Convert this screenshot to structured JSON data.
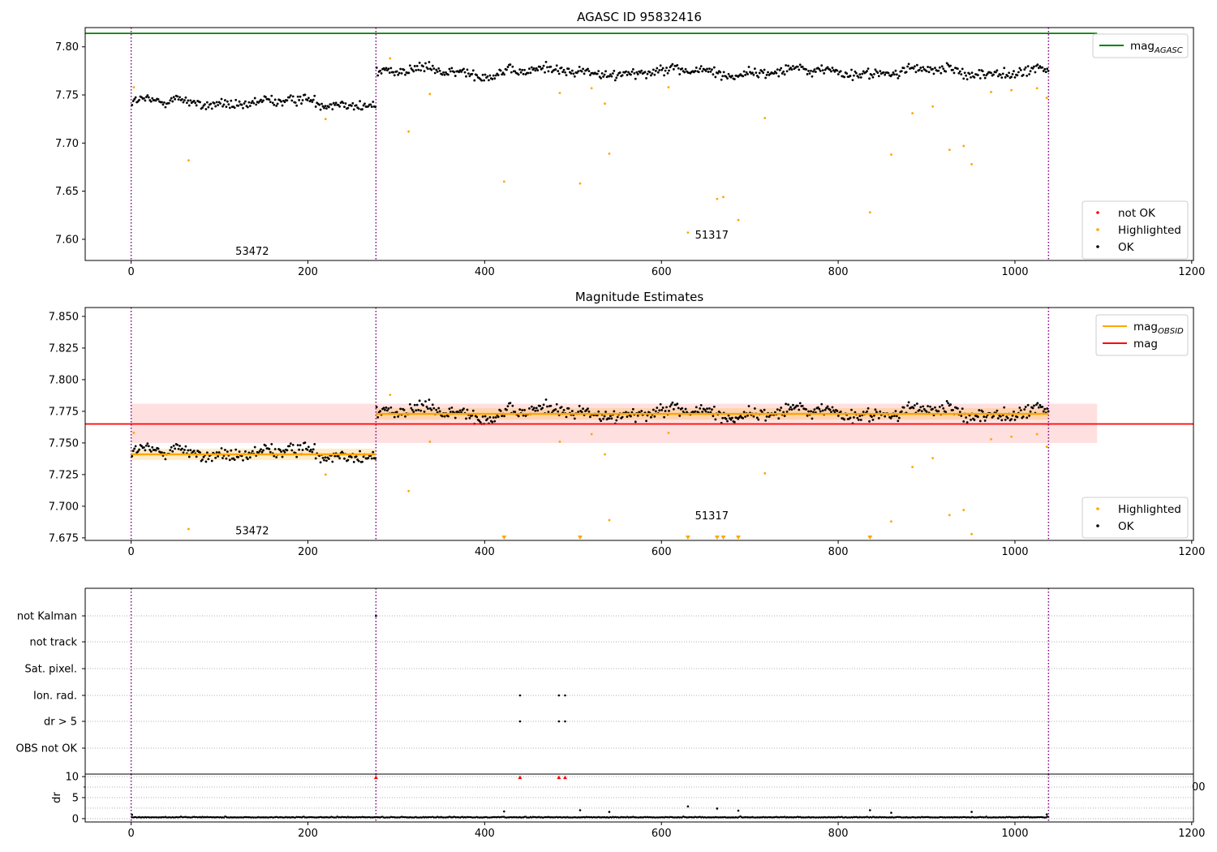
{
  "chart_data": [
    {
      "type": "scatter",
      "title": "AGASC ID 95832416",
      "xlim": [
        -52,
        1202
      ],
      "ylim": [
        7.578,
        7.82
      ],
      "x_ticks": [
        0,
        200,
        400,
        600,
        800,
        1000,
        1200
      ],
      "y_ticks": [
        7.6,
        7.65,
        7.7,
        7.75,
        7.8
      ],
      "grid": false,
      "mag_agasc": 7.814,
      "obsid_boundaries": [
        0,
        277,
        1038
      ],
      "obsid_annotations": [
        {
          "text": "53472",
          "x": 118,
          "y": 7.588
        },
        {
          "text": "51317",
          "x": 638,
          "y": 7.605
        }
      ],
      "segments": [
        {
          "x_start": 0,
          "x_end": 277,
          "mean": 7.742,
          "spread": 0.005
        },
        {
          "x_start": 277,
          "x_end": 1038,
          "mean": 7.774,
          "spread": 0.005
        }
      ],
      "series": [
        {
          "name": "not OK",
          "color": "#ff0000",
          "points": []
        },
        {
          "name": "Highlighted",
          "color": "#ffa500",
          "points": [
            [
              3,
              7.758
            ],
            [
              65,
              7.682
            ],
            [
              220,
              7.725
            ],
            [
              293,
              7.788
            ],
            [
              314,
              7.712
            ],
            [
              338,
              7.751
            ],
            [
              422,
              7.66
            ],
            [
              485,
              7.752
            ],
            [
              508,
              7.658
            ],
            [
              521,
              7.757
            ],
            [
              536,
              7.741
            ],
            [
              541,
              7.689
            ],
            [
              608,
              7.758
            ],
            [
              630,
              7.607
            ],
            [
              663,
              7.642
            ],
            [
              670,
              7.644
            ],
            [
              687,
              7.62
            ],
            [
              717,
              7.726
            ],
            [
              836,
              7.628
            ],
            [
              860,
              7.688
            ],
            [
              884,
              7.731
            ],
            [
              907,
              7.738
            ],
            [
              926,
              7.693
            ],
            [
              942,
              7.697
            ],
            [
              951,
              7.678
            ],
            [
              973,
              7.753
            ],
            [
              996,
              7.755
            ],
            [
              1025,
              7.757
            ],
            [
              1036,
              7.747
            ]
          ]
        },
        {
          "name": "OK",
          "color": "#000000",
          "points": []
        }
      ],
      "legend_upper": {
        "position": "top-right",
        "entries": [
          {
            "label": "mag",
            "sub": "AGASC",
            "color": "#008000"
          }
        ]
      },
      "legend_lower": {
        "position": "lower-right",
        "entries": [
          {
            "label": "not OK",
            "color": "#ff0000"
          },
          {
            "label": "Highlighted",
            "color": "#ffa500"
          },
          {
            "label": "OK",
            "color": "#000000"
          }
        ]
      }
    },
    {
      "type": "scatter",
      "title": "Magnitude Estimates",
      "xlim": [
        -52,
        1202
      ],
      "ylim": [
        7.673,
        7.857
      ],
      "x_ticks": [
        0,
        200,
        400,
        600,
        800,
        1000,
        1200
      ],
      "y_ticks": [
        7.675,
        7.7,
        7.725,
        7.75,
        7.775,
        7.8,
        7.825,
        7.85
      ],
      "grid": false,
      "mag": 7.765,
      "mag_band": [
        7.75,
        7.781
      ],
      "mag_band_xlim": [
        0,
        1093
      ],
      "obsid_mags": [
        {
          "x_start": 0,
          "x_end": 277,
          "mag": 7.741
        },
        {
          "x_start": 277,
          "x_end": 1038,
          "mag": 7.773
        }
      ],
      "obsid_boundaries": [
        0,
        277,
        1038
      ],
      "obsid_annotations": [
        {
          "text": "53472",
          "x": 118,
          "y": 7.681
        },
        {
          "text": "51317",
          "x": 638,
          "y": 7.693
        }
      ],
      "off_scale_markers_x": [
        422,
        508,
        630,
        663,
        670,
        687,
        836
      ],
      "series": [
        {
          "name": "Highlighted",
          "color": "#ffa500",
          "points": [
            [
              3,
              7.758
            ],
            [
              65,
              7.682
            ],
            [
              220,
              7.725
            ],
            [
              293,
              7.788
            ],
            [
              314,
              7.712
            ],
            [
              338,
              7.751
            ],
            [
              485,
              7.751
            ],
            [
              521,
              7.757
            ],
            [
              536,
              7.741
            ],
            [
              541,
              7.689
            ],
            [
              608,
              7.758
            ],
            [
              717,
              7.726
            ],
            [
              860,
              7.688
            ],
            [
              884,
              7.731
            ],
            [
              907,
              7.738
            ],
            [
              926,
              7.693
            ],
            [
              942,
              7.697
            ],
            [
              951,
              7.678
            ],
            [
              973,
              7.753
            ],
            [
              996,
              7.755
            ],
            [
              1025,
              7.757
            ],
            [
              1036,
              7.747
            ]
          ]
        },
        {
          "name": "OK",
          "color": "#000000",
          "points": []
        }
      ],
      "legend_upper": {
        "position": "top-right",
        "entries": [
          {
            "label": "mag",
            "sub": "OBSID",
            "color": "#ffa500"
          },
          {
            "label": "mag",
            "sub": "",
            "color": "#ff0000"
          }
        ]
      },
      "legend_lower": {
        "position": "lower-right",
        "entries": [
          {
            "label": "Highlighted",
            "color": "#ffa500"
          },
          {
            "label": "OK",
            "color": "#000000"
          }
        ]
      }
    },
    {
      "type": "scatter",
      "xlim": [
        -52,
        1202
      ],
      "flag_rows": [
        "not Kalman",
        "not track",
        "Sat. pixel.",
        "Ion. rad.",
        "dr > 5",
        "OBS not OK"
      ],
      "flag_points": [
        {
          "row": "not Kalman",
          "x": 277
        },
        {
          "row": "Ion. rad.",
          "x": 440
        },
        {
          "row": "Ion. rad.",
          "x": 484
        },
        {
          "row": "Ion. rad.",
          "x": 491
        },
        {
          "row": "dr > 5",
          "x": 440
        },
        {
          "row": "dr > 5",
          "x": 484
        },
        {
          "row": "dr > 5",
          "x": 491
        }
      ],
      "obsid_boundaries": [
        0,
        277,
        1038
      ]
    },
    {
      "type": "scatter",
      "ylabel": "dr",
      "xlim": [
        -52,
        1202
      ],
      "ylim": [
        -0.8,
        10.6
      ],
      "x_ticks": [
        0,
        200,
        400,
        600,
        800,
        1000,
        1200
      ],
      "y_ticks": [
        0,
        5,
        10
      ],
      "grid": true,
      "clipped_tick_text": "00",
      "outliers": [
        [
          1,
          0.9
        ],
        [
          422,
          1.7
        ],
        [
          508,
          2.0
        ],
        [
          541,
          1.6
        ],
        [
          630,
          2.9
        ],
        [
          663,
          2.4
        ],
        [
          687,
          1.9
        ],
        [
          836,
          2.0
        ],
        [
          860,
          1.4
        ],
        [
          951,
          1.6
        ],
        [
          1036,
          1.0
        ]
      ],
      "off_scale": [
        {
          "x": 277,
          "color": "#ff0000"
        },
        {
          "x": 440,
          "color": "#ff0000"
        },
        {
          "x": 484,
          "color": "#ff0000"
        },
        {
          "x": 491,
          "color": "#ff0000"
        }
      ],
      "obsid_boundaries": [
        0,
        277,
        1038
      ]
    }
  ]
}
